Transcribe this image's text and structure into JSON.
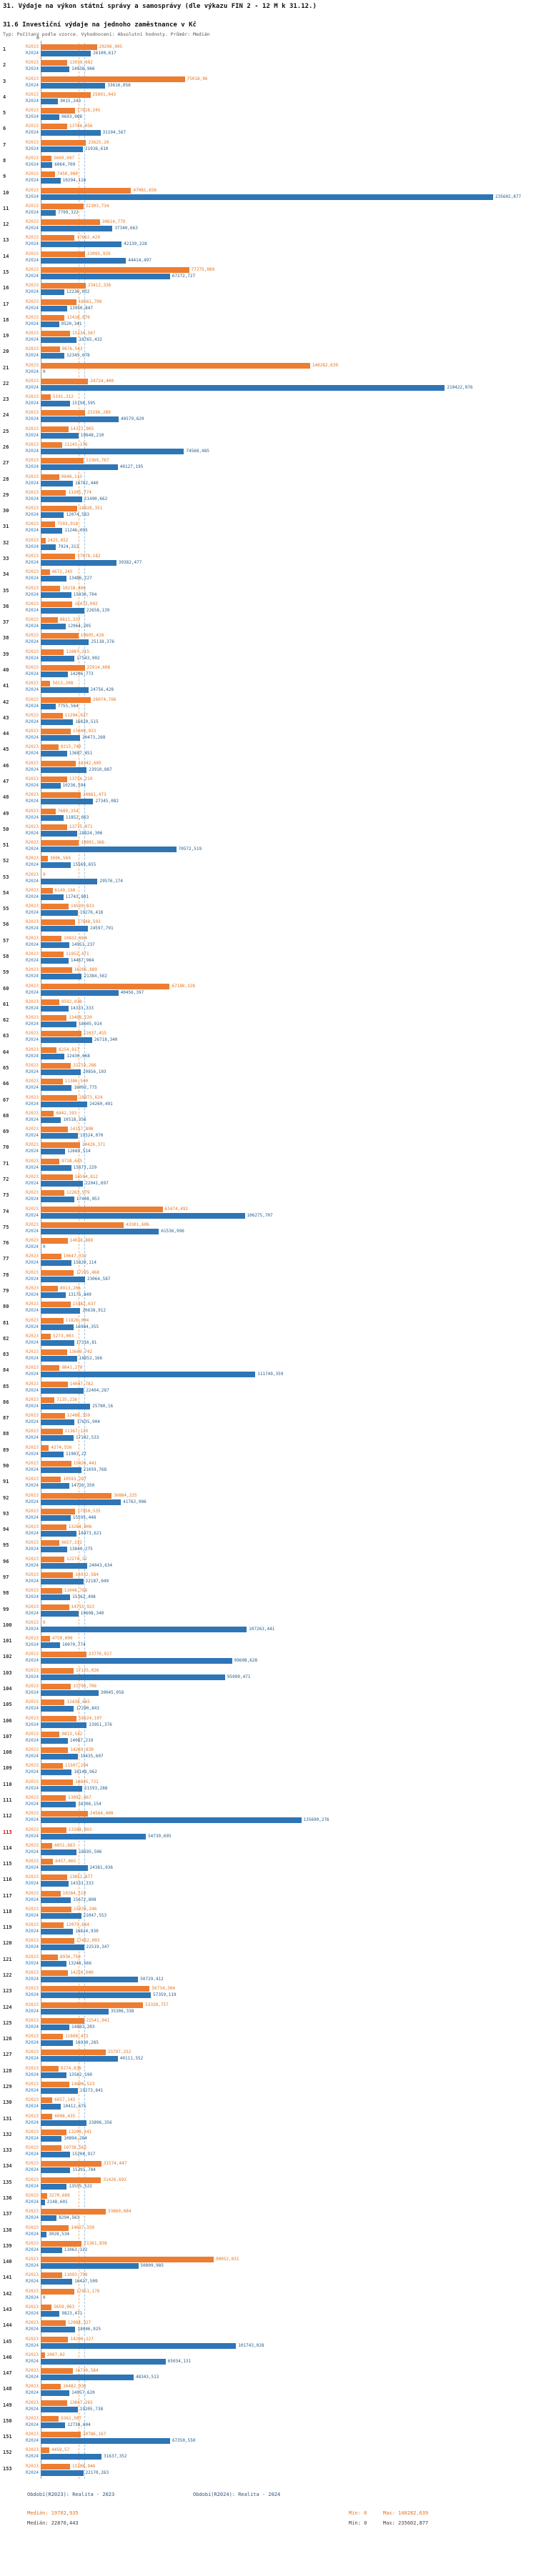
{
  "chart_data": {
    "type": "bar",
    "orientation": "horizontal",
    "title": "31. Výdaje na výkon státní správy a samosprávy (dle výkazu FIN 2 - 12 M k 31.12.)",
    "subtitle": "31.6 Investiční výdaje na jednoho zaměstnance v Kč",
    "meta": "Typ: Počítaný podle vzorce. Vyhodnocení: Absolutní hodnoty. Průměr: Medián",
    "axis": {
      "zero_tick": "0"
    },
    "xlim": [
      0,
      235602.877
    ],
    "grid": false,
    "legend_position": "bottom",
    "series": [
      {
        "name": "R2023",
        "color": "#ED7D31",
        "period": "Realita - 2023",
        "median": 19702.935,
        "min": 0,
        "max": 140282.639
      },
      {
        "name": "R2024",
        "color": "#2E75B6",
        "period": "Realita - 2024",
        "median": 22870.443,
        "min": 0,
        "max": 235602.877
      }
    ],
    "highlight_rows": [
      113
    ],
    "rows": [
      [
        1,
        "29296,905",
        "26100,617"
      ],
      [
        2,
        "13918,682",
        "14938,966"
      ],
      [
        3,
        "75018,96",
        "33616,056"
      ],
      [
        4,
        "25891,043",
        "9015,243"
      ],
      [
        5,
        "17818,245",
        "9693,968"
      ],
      [
        6,
        "13786,056",
        "31104,567"
      ],
      [
        7,
        "23625,10",
        "21936,610"
      ],
      [
        8,
        "5609,097",
        "6064,709"
      ],
      [
        9,
        "7450,980",
        "10294,118"
      ],
      [
        10,
        "47081,656",
        "235602,877"
      ],
      [
        11,
        "22303,734",
        "7799,322"
      ],
      [
        12,
        "30814,779",
        "37340,663"
      ],
      [
        13,
        "17662,429",
        "42139,228"
      ],
      [
        14,
        "23095,939",
        "44414,497"
      ],
      [
        15,
        "77275,089",
        "67272,727"
      ],
      [
        16,
        "23412,336",
        "12236,032"
      ],
      [
        17,
        "18561,708",
        "13950,847"
      ],
      [
        18,
        "12416,876",
        "9520,341"
      ],
      [
        19,
        "15234,567",
        "18765,432"
      ],
      [
        20,
        "9876,543",
        "12345,678"
      ],
      [
        21,
        "140282,639",
        "0"
      ],
      [
        22,
        "24724,400",
        "210422,076"
      ],
      [
        23,
        "5191,312",
        "15194,595"
      ],
      [
        24,
        "23196,289",
        "40579,629"
      ],
      [
        25,
        "14372,905",
        "19648,210"
      ],
      [
        26,
        "11143,176",
        "74568,485"
      ],
      [
        27,
        "22369,767",
        "40127,195"
      ],
      [
        28,
        "9648,113",
        "16782,440"
      ],
      [
        29,
        "13205,774",
        "21490,662"
      ],
      [
        30,
        "18926,351",
        "12074,583"
      ],
      [
        31,
        "7503,918",
        "11246,095"
      ],
      [
        32,
        "2425,652",
        "7924,313"
      ],
      [
        33,
        "17878,182",
        "39382,477"
      ],
      [
        34,
        "4672,245",
        "13486,227"
      ],
      [
        35,
        "10218,466",
        "15930,704"
      ],
      [
        36,
        "16473,092",
        "22658,139"
      ],
      [
        37,
        "8821,337",
        "12964,205"
      ],
      [
        38,
        "19605,428",
        "25118,376"
      ],
      [
        39,
        "12087,215",
        "17543,902"
      ],
      [
        40,
        "22914,608",
        "14206,773"
      ],
      [
        41,
        "5013,208",
        "24756,428"
      ],
      [
        42,
        "26074,766",
        "7755,564"
      ],
      [
        43,
        "11394,027",
        "16820,515"
      ],
      [
        44,
        "15608,932",
        "20473,268"
      ],
      [
        45,
        "9215,740",
        "13687,451"
      ],
      [
        46,
        "18342,605",
        "23910,887"
      ],
      [
        47,
        "13754,219",
        "10236,594"
      ],
      [
        48,
        "20861,473",
        "27345,082"
      ],
      [
        49,
        "7689,354",
        "11852,663"
      ],
      [
        50,
        "13775,971",
        "18924,306"
      ],
      [
        51,
        "19891,366",
        "70572,519"
      ],
      [
        52,
        "3696,569",
        "15569,655"
      ],
      [
        53,
        "0",
        "29576,174"
      ],
      [
        54,
        "6149,160",
        "11743,801"
      ],
      [
        55,
        "14520,833",
        "19276,418"
      ],
      [
        56,
        "17948,593",
        "24597,791"
      ],
      [
        57,
        "10832,664",
        "14951,237"
      ],
      [
        58,
        "11952,471",
        "14467,984"
      ],
      [
        59,
        "16205,889",
        "21384,562"
      ],
      [
        60,
        "67180,328",
        "40456,397"
      ],
      [
        61,
        "9592,038",
        "14333,333"
      ],
      [
        62,
        "13468,220",
        "18605,914"
      ],
      [
        63,
        "21037,455",
        "26718,340"
      ],
      [
        64,
        "8254,917",
        "12430,668"
      ],
      [
        65,
        "15719,286",
        "20856,103"
      ],
      [
        66,
        "11386,540",
        "16092,775"
      ],
      [
        67,
        "18973,624",
        "24260,491"
      ],
      [
        68,
        "6842,193",
        "10518,356"
      ],
      [
        69,
        "14157,808",
        "19324,070"
      ],
      [
        70,
        "20426,371",
        "12689,514"
      ],
      [
        71,
        "9738,645",
        "15873,229"
      ],
      [
        72,
        "16594,812",
        "22041,697"
      ],
      [
        73,
        "12263,579",
        "17408,953"
      ],
      [
        74,
        "63474,492",
        "106275,707"
      ],
      [
        75,
        "43301,606",
        "61536,996"
      ],
      [
        76,
        "14038,889",
        "0"
      ],
      [
        77,
        "10647,332",
        "15820,114"
      ],
      [
        78,
        "17295,468",
        "23064,587"
      ],
      [
        79,
        "8913,206",
        "13175,849"
      ],
      [
        80,
        "15482,637",
        "20638,912"
      ],
      [
        81,
        "11826,094",
        "16984,355"
      ],
      [
        82,
        "5273,003",
        "17316,81"
      ],
      [
        83,
        "13609,742",
        "18852,166"
      ],
      [
        84,
        "9841,270",
        "111749,359"
      ],
      [
        85,
        "14047,782",
        "22404,287"
      ],
      [
        86,
        "7135,236",
        "25780,16"
      ],
      [
        87,
        "12480,359",
        "17635,904"
      ],
      [
        88,
        "11367,129",
        "17102,533"
      ],
      [
        89,
        "4274,556",
        "11903,22"
      ],
      [
        90,
        "15826,441",
        "21059,768"
      ],
      [
        91,
        "10593,287",
        "14726,350"
      ],
      [
        92,
        "36884,225",
        "41762,906"
      ],
      [
        93,
        "17950,535",
        "15595,448"
      ],
      [
        94,
        "13284,906",
        "18473,621"
      ],
      [
        95,
        "9657,312",
        "13840,275"
      ],
      [
        96,
        "12270,32",
        "24043,634"
      ],
      [
        97,
        "16932,584",
        "22187,049"
      ],
      [
        98,
        "11048,766",
        "15362,498"
      ],
      [
        99,
        "14715,923",
        "19608,340"
      ],
      [
        100,
        "0",
        "107263,441"
      ],
      [
        101,
        "4750,000",
        "10070,774"
      ],
      [
        102,
        "23770,917",
        "99608,628"
      ],
      [
        103,
        "17125,026",
        "95999,471"
      ],
      [
        104,
        "15796,706",
        "30045,058"
      ],
      [
        105,
        "12438,665",
        "17290,843"
      ],
      [
        106,
        "18624,107",
        "23951,376"
      ],
      [
        107,
        "9813,542",
        "14087,219"
      ],
      [
        108,
        "14269,830",
        "19435,607"
      ],
      [
        109,
        "11507,294",
        "16148,962"
      ],
      [
        110,
        "16845,731",
        "21593,288"
      ],
      [
        111,
        "13092,467",
        "18306,154"
      ],
      [
        112,
        "24564,408",
        "135690,276"
      ],
      [
        113,
        "13304,093",
        "54739,695"
      ],
      [
        114,
        "6031,663",
        "18595,506"
      ],
      [
        115,
        "6457,865",
        "24381,036"
      ],
      [
        116,
        "13851,877",
        "14333,333"
      ],
      [
        117,
        "10284,519",
        "15672,808"
      ],
      [
        118,
        "15938,246",
        "21047,553"
      ],
      [
        119,
        "12075,684",
        "16824,930"
      ],
      [
        120,
        "17462,093",
        "22519,347"
      ],
      [
        121,
        "8936,750",
        "13248,566"
      ],
      [
        122,
        "14250,000",
        "50729,412"
      ],
      [
        123,
        "56734,304",
        "57359,119"
      ],
      [
        124,
        "53328,757",
        "35306,338"
      ],
      [
        125,
        "22541,041",
        "14883,203"
      ],
      [
        126,
        "11608,472",
        "16930,285"
      ],
      [
        127,
        "33797,252",
        "40111,552"
      ],
      [
        128,
        "9274,836",
        "13562,190"
      ],
      [
        129,
        "14806,523",
        "19273,841"
      ],
      [
        130,
        "6057,143",
        "10412,675"
      ],
      [
        131,
        "6096,435",
        "23896,356"
      ],
      [
        132,
        "13299,241",
        "10894,284"
      ],
      [
        133,
        "10738,562",
        "15204,917"
      ],
      [
        134,
        "31574,447",
        "15391,784"
      ],
      [
        135,
        "31426,692",
        "13555,522"
      ],
      [
        136,
        "3270,689",
        "2148,601"
      ],
      [
        137,
        "33860,684",
        "8294,563"
      ],
      [
        138,
        "14637,350",
        "3028,534"
      ],
      [
        139,
        "21361,836",
        "11063,322"
      ],
      [
        140,
        "90052,031",
        "50809,985"
      ],
      [
        141,
        "11093,758",
        "16427,509"
      ],
      [
        142,
        "17451,178",
        "0"
      ],
      [
        143,
        "5659,063",
        "9823,471"
      ],
      [
        144,
        "12984,327",
        "18046,925"
      ],
      [
        145,
        "14290,227",
        "101743,028"
      ],
      [
        146,
        "2097,02",
        "65034,131"
      ],
      [
        147,
        "16730,584",
        "48343,513"
      ],
      [
        148,
        "10482,936",
        "14957,620"
      ],
      [
        149,
        "13847,265",
        "19205,738"
      ],
      [
        150,
        "9361,507",
        "12738,604"
      ],
      [
        151,
        "20786,167",
        "67350,550"
      ],
      [
        152,
        "4459,57",
        "31637,352"
      ],
      [
        153,
        "15208,946",
        "22170,263"
      ]
    ],
    "legend": {
      "r2023_period": "Období(R2023): Realita - 2023",
      "r2024_period": "Období(R2024): Realita - 2024",
      "r2023_median": "Medián: 19702,935",
      "r2024_median": "Medián: 22870,443",
      "r2023_min": "Min: 0",
      "r2023_max": "Max: 140282,639",
      "r2024_min": "Min: 0",
      "r2024_max": "Max: 235602,877"
    }
  }
}
